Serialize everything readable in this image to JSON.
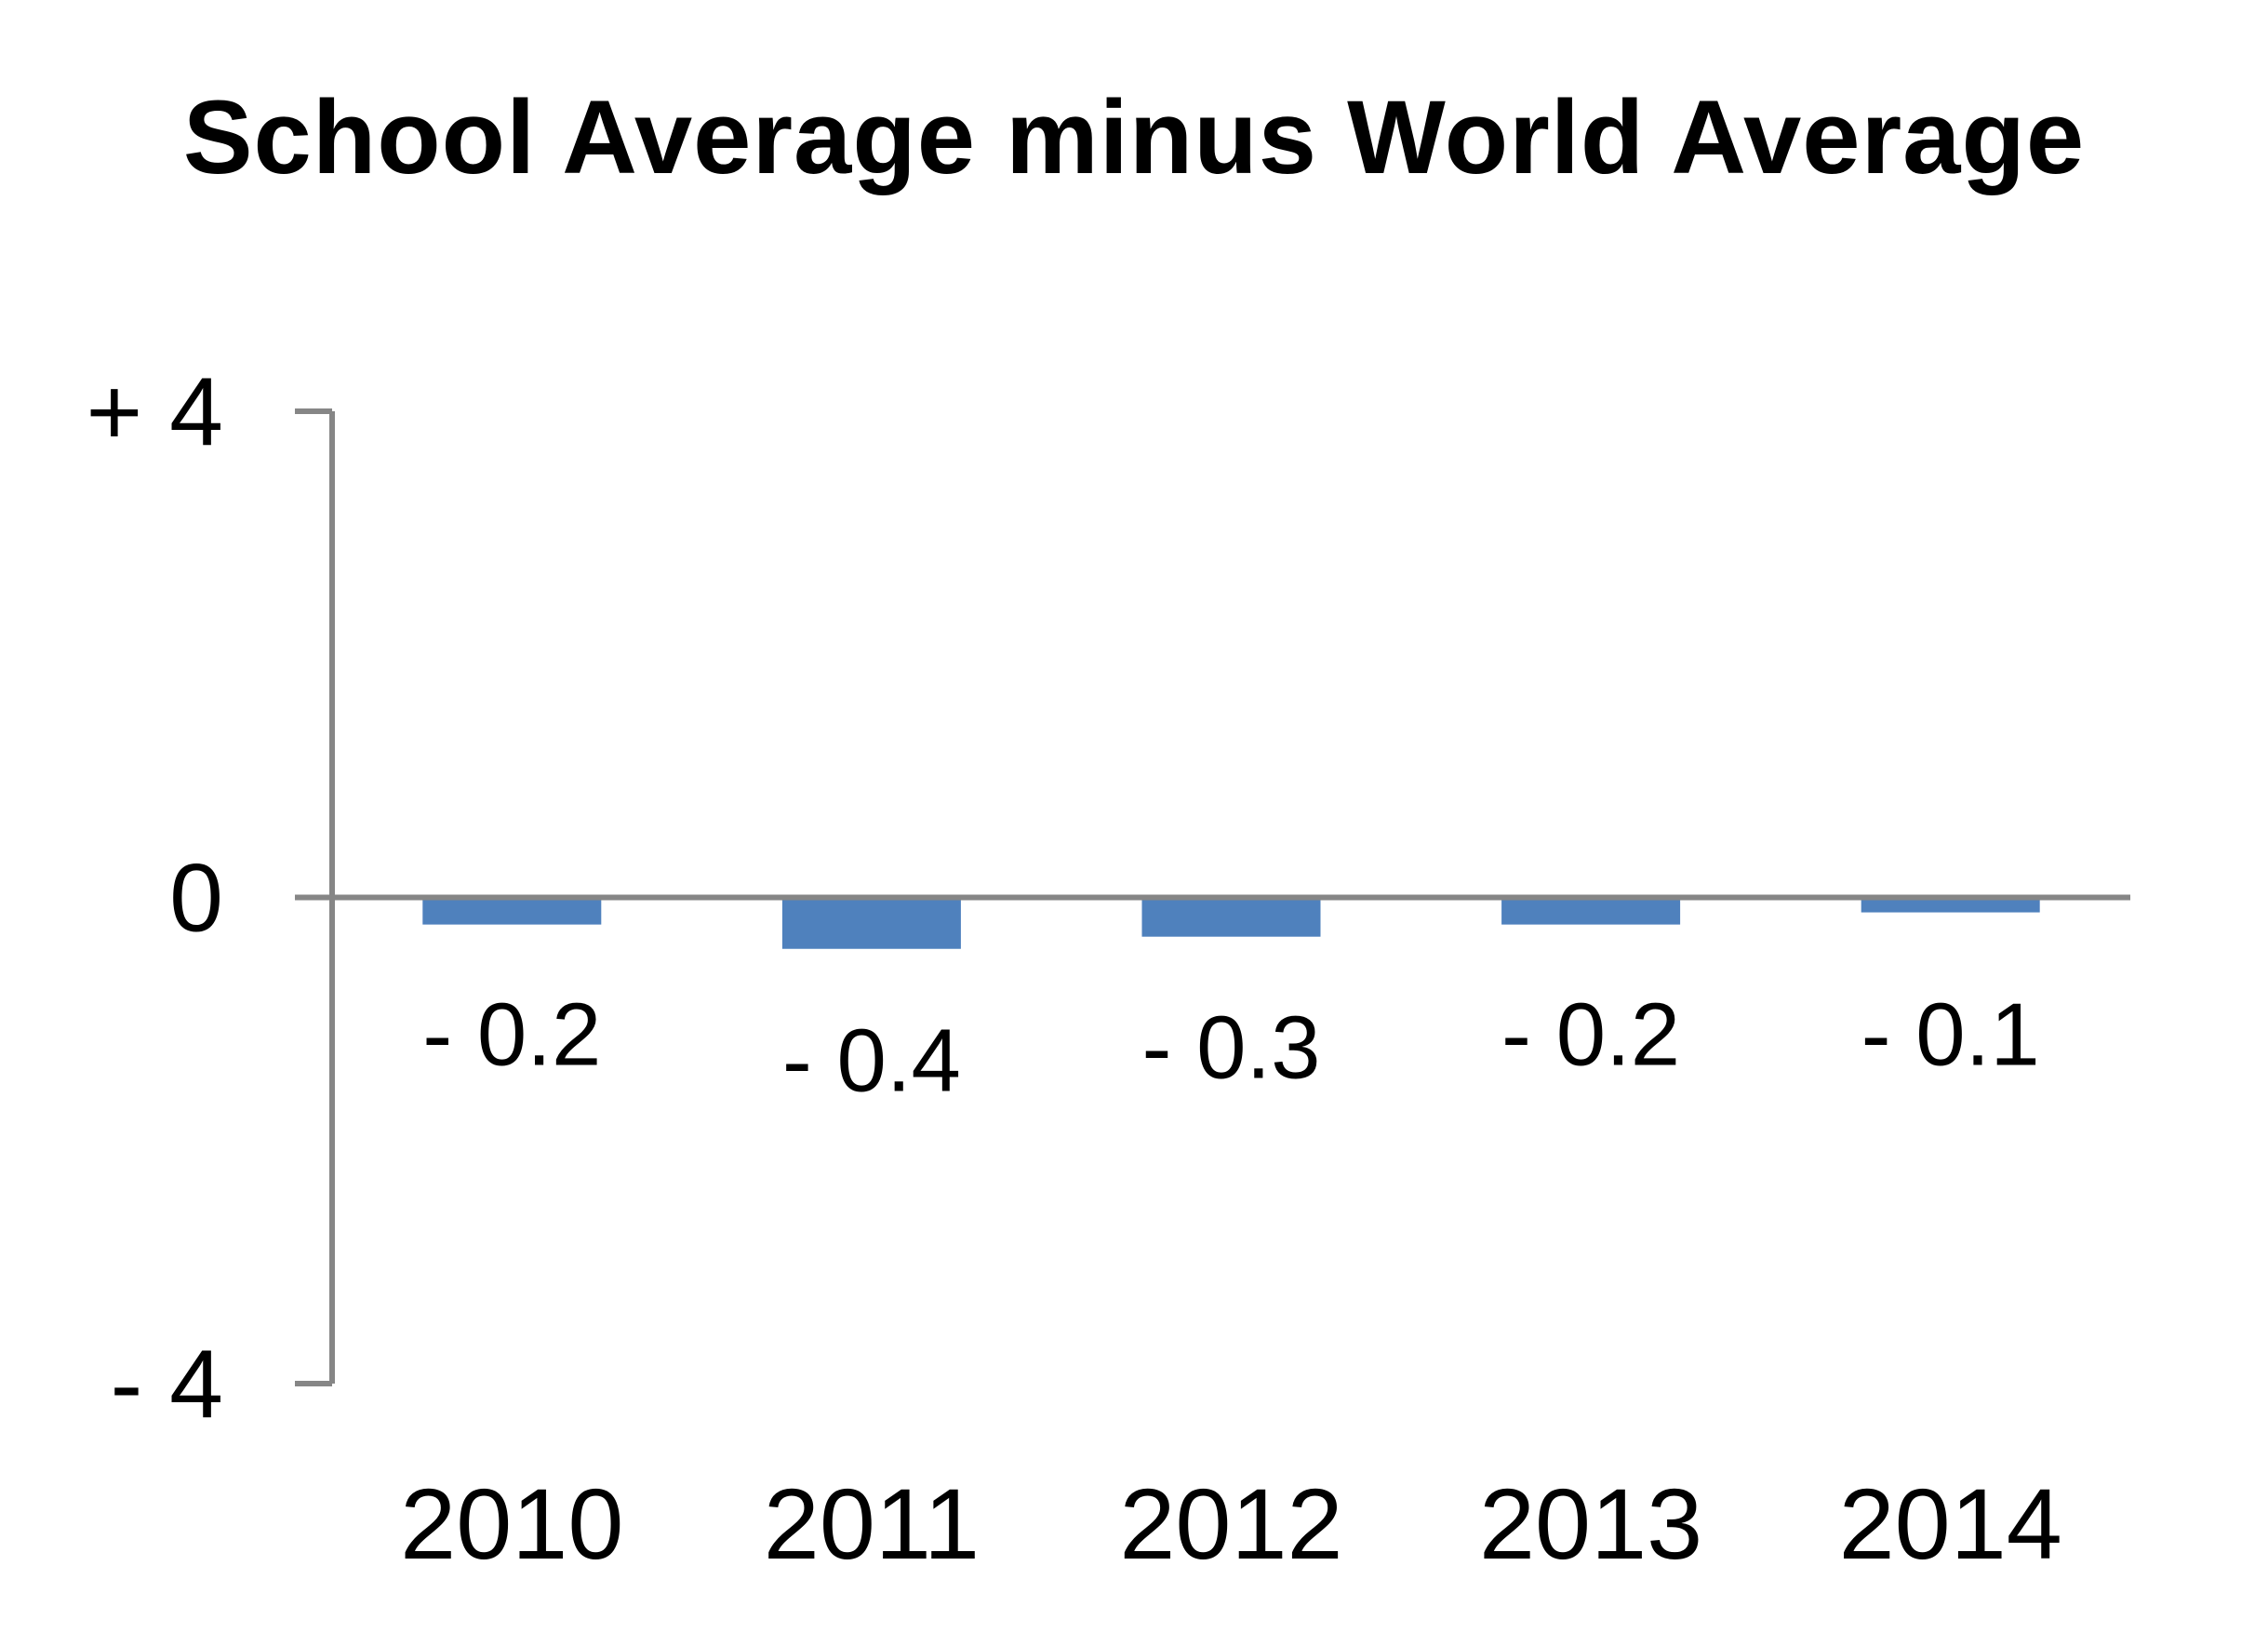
{
  "chart_data": {
    "type": "bar",
    "title": "School Average minus World Average",
    "xlabel": "",
    "ylabel": "",
    "categories": [
      "2010",
      "2011",
      "2012",
      "2013",
      "2014"
    ],
    "series": [
      {
        "values": [
          -0.2,
          -0.4,
          -0.3,
          -0.2,
          -0.1
        ],
        "color": "#4F81BD"
      }
    ],
    "data_labels": [
      "- 0.2",
      "- 0.4",
      "- 0.3",
      "- 0.2",
      "- 0.1"
    ],
    "yticks": [
      {
        "value": 4,
        "label": "+ 4"
      },
      {
        "value": 0,
        "label": "0"
      },
      {
        "value": -4,
        "label": "- 4"
      }
    ],
    "ylim": [
      -4,
      4
    ],
    "grid": false,
    "legend": "none"
  },
  "colors": {
    "bar": "#4F81BD",
    "axis": "#868686",
    "text": "#000000"
  }
}
